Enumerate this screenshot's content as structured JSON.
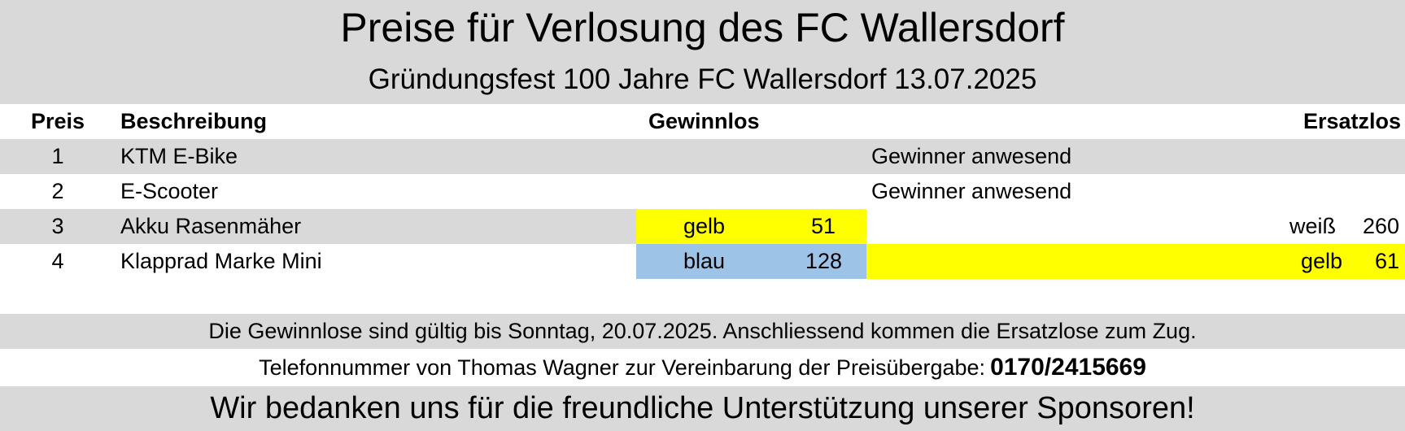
{
  "title": "Preise für Verlosung des FC Wallersdorf",
  "subtitle": "Gründungsfest 100 Jahre FC Wallersdorf 13.07.2025",
  "table": {
    "headers": {
      "preis": "Preis",
      "beschreibung": "Beschreibung",
      "gewinnlos": "Gewinnlos",
      "ersatzlos": "Ersatzlos"
    },
    "rows": [
      {
        "preis": "1",
        "beschreibung": "KTM E-Bike",
        "gewinnlos_farbe": "",
        "gewinnlos_nummer": "",
        "status": "Gewinner anwesend",
        "ersatz_farbe": "",
        "ersatz_nummer": ""
      },
      {
        "preis": "2",
        "beschreibung": "E-Scooter",
        "gewinnlos_farbe": "",
        "gewinnlos_nummer": "",
        "status": "Gewinner anwesend",
        "ersatz_farbe": "",
        "ersatz_nummer": ""
      },
      {
        "preis": "3",
        "beschreibung": "Akku Rasenmäher",
        "gewinnlos_farbe": "gelb",
        "gewinnlos_nummer": "51",
        "status": "",
        "ersatz_farbe": "weiß",
        "ersatz_nummer": "260"
      },
      {
        "preis": "4",
        "beschreibung": "Klapprad Marke Mini",
        "gewinnlos_farbe": "blau",
        "gewinnlos_nummer": "128",
        "status": "",
        "ersatz_farbe": "gelb",
        "ersatz_nummer": "61"
      }
    ]
  },
  "footer": {
    "validity_note": "Die Gewinnlose sind gültig bis Sonntag, 20.07.2025. Anschliessend kommen die Ersatzlose zum Zug.",
    "phone_label": "Telefonnummer von Thomas Wagner zur Vereinbarung der Preisübergabe:",
    "phone_number": "0170/2415669",
    "thanks": "Wir bedanken uns für die freundliche Unterstützung unserer Sponsoren!"
  },
  "colors": {
    "grey_band": "#d9d9d9",
    "yellow": "#ffff00",
    "blue": "#9dc3e6"
  }
}
